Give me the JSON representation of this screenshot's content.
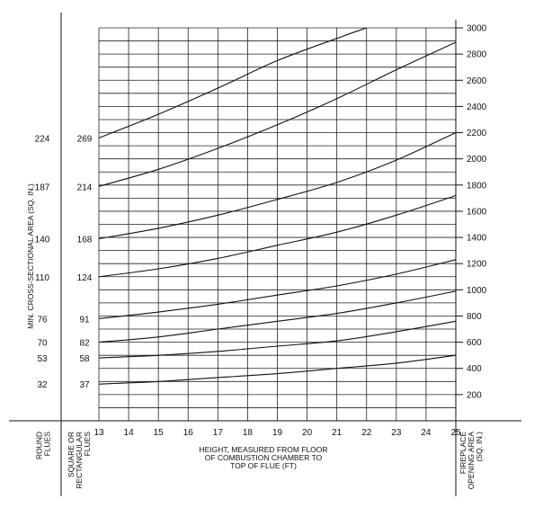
{
  "chart_data": {
    "type": "line",
    "xlabel_lines": [
      "HEIGHT, MEASURED FROM FLOOR",
      "OF COMBUSTION CHAMBER TO",
      "TOP OF FLUE (FT)"
    ],
    "ylabel": "MIN. CROSS-SECTIONAL AREA (SQ. IN.)",
    "x_ticks": [
      "13",
      "14",
      "15",
      "16",
      "17",
      "18",
      "19",
      "20",
      "21",
      "22",
      "23",
      "24",
      "25"
    ],
    "xlim": [
      13,
      25
    ],
    "y2lim": [
      0,
      3000
    ],
    "right_ticks": [
      "200",
      "400",
      "600",
      "800",
      "1000",
      "1200",
      "1400",
      "1600",
      "1800",
      "2000",
      "2200",
      "2400",
      "2600",
      "2800",
      "3000"
    ],
    "column_labels": {
      "round": [
        "ROUND",
        "FLUES"
      ],
      "square": [
        "SQUARE OR",
        "RECTANGULAR",
        "FLUES"
      ],
      "fireplace": [
        "FIREPLACE",
        "OPENING AREA",
        "(SQ. IN.)"
      ]
    },
    "grid": true,
    "curves": [
      {
        "round": "32",
        "square": "37",
        "x": [
          13,
          15,
          17,
          19,
          21,
          23,
          25
        ],
        "y": [
          280,
          300,
          330,
          360,
          400,
          440,
          500
        ]
      },
      {
        "round": "53",
        "square": "58",
        "x": [
          13,
          15,
          17,
          19,
          21,
          23,
          25
        ],
        "y": [
          480,
          500,
          530,
          570,
          610,
          680,
          760
        ]
      },
      {
        "round": "70",
        "square": "82",
        "x": [
          13,
          15,
          17,
          19,
          21,
          23,
          25
        ],
        "y": [
          600,
          640,
          700,
          760,
          820,
          900,
          990
        ]
      },
      {
        "round": "76",
        "square": "91",
        "x": [
          13,
          15,
          17,
          19,
          21,
          23,
          25
        ],
        "y": [
          780,
          830,
          890,
          960,
          1030,
          1120,
          1230
        ]
      },
      {
        "round": "110",
        "square": "124",
        "x": [
          13,
          15,
          17,
          19,
          21,
          23,
          25
        ],
        "y": [
          1100,
          1160,
          1240,
          1340,
          1440,
          1570,
          1720
        ]
      },
      {
        "round": "140",
        "square": "168",
        "x": [
          13,
          15,
          17,
          19,
          21,
          23,
          25
        ],
        "y": [
          1390,
          1470,
          1570,
          1690,
          1820,
          1990,
          2200
        ]
      },
      {
        "round": "187",
        "square": "214",
        "x": [
          13,
          15,
          17,
          19,
          21,
          23,
          25
        ],
        "y": [
          1790,
          1920,
          2080,
          2260,
          2460,
          2680,
          2890
        ]
      },
      {
        "round": "224",
        "square": "269",
        "x": [
          13,
          15,
          17,
          19,
          21,
          22
        ],
        "y": [
          2160,
          2340,
          2540,
          2750,
          2920,
          3000
        ]
      }
    ]
  }
}
